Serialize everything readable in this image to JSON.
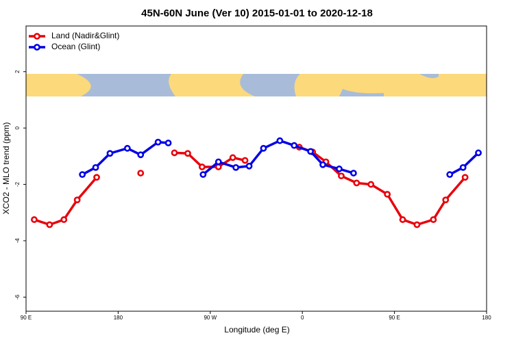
{
  "chart_data": {
    "type": "line",
    "title": "45N-60N June (Ver 10)   2015-01-01 to 2020-12-18",
    "x_label": "Longitude (deg E)",
    "y_label": "XCO2 - MLO trend (ppm)",
    "xlim": [
      90,
      540
    ],
    "ylim": [
      -6.5,
      3.62
    ],
    "xticks": [
      {
        "value": 90,
        "label": "90 E"
      },
      180,
      {
        "value": 270,
        "label": "90 W"
      },
      {
        "value": 360,
        "label": "0"
      },
      {
        "value": 450,
        "label": "90 E"
      },
      {
        "value": 540,
        "label": "180"
      }
    ],
    "yticks": [
      2,
      0,
      -2,
      -4,
      -6
    ],
    "legend": "top-left",
    "series": [
      {
        "name": "Land (Nadir&Glint)",
        "color": "#e8000b",
        "x": [
          98,
          113,
          127,
          140,
          159,
          null,
          202,
          null,
          235,
          248,
          262,
          278,
          292,
          304,
          null,
          357,
          370,
          383,
          398,
          413,
          427,
          443,
          458,
          472,
          488,
          500,
          519
        ],
        "values": [
          -3.25,
          -3.43,
          -3.25,
          -2.55,
          -1.75,
          null,
          -1.6,
          null,
          -0.88,
          -0.9,
          -1.38,
          -1.38,
          -1.05,
          -1.15,
          null,
          -0.68,
          -0.85,
          -1.2,
          -1.7,
          -1.95,
          -2.0,
          -2.35,
          -3.25,
          -3.43,
          -3.25,
          -2.55,
          -1.75
        ]
      },
      {
        "name": "Ocean (Glint)",
        "color": "#0000e6",
        "x": [
          145,
          158,
          172,
          189,
          202,
          219,
          229,
          null,
          263,
          278,
          295,
          308,
          322,
          338,
          352,
          368,
          380,
          396,
          410,
          null,
          504,
          517,
          532
        ],
        "values": [
          -1.65,
          -1.4,
          -0.9,
          -0.72,
          -0.95,
          -0.5,
          -0.53,
          null,
          -1.65,
          -1.2,
          -1.4,
          -1.35,
          -0.72,
          -0.45,
          -0.62,
          -0.83,
          -1.3,
          -1.45,
          -1.6,
          null,
          -1.65,
          -1.4,
          -0.88
        ]
      }
    ]
  }
}
